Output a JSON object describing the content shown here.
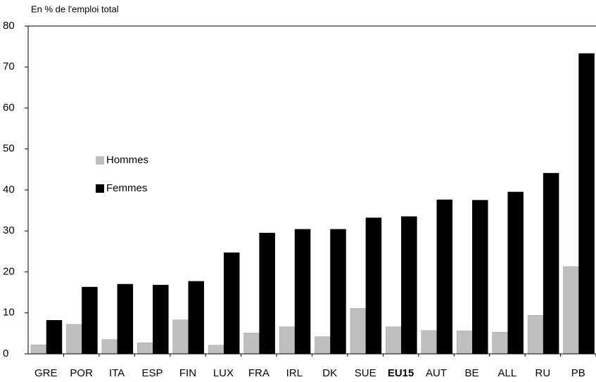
{
  "chart_data": {
    "type": "bar",
    "y_label": "En % de l'emploi total",
    "categories": [
      "GRE",
      "POR",
      "ITA",
      "ESP",
      "FIN",
      "LUX",
      "FRA",
      "IRL",
      "DK",
      "SUE",
      "EU15",
      "AUT",
      "BE",
      "ALL",
      "RU",
      "PB"
    ],
    "bold_category_index": 10,
    "series": [
      {
        "name": "Hommes",
        "color": "#bfbfbf",
        "values": [
          2.2,
          7.2,
          3.5,
          2.7,
          8.3,
          2.1,
          5.1,
          6.6,
          4.2,
          11.1,
          6.6,
          5.7,
          5.6,
          5.3,
          9.4,
          21.3
        ]
      },
      {
        "name": "Femmes",
        "color": "#000000",
        "values": [
          8.2,
          16.3,
          17.0,
          16.8,
          17.7,
          24.7,
          29.5,
          30.4,
          30.4,
          33.2,
          33.5,
          37.6,
          37.5,
          39.5,
          44.1,
          73.3
        ]
      }
    ],
    "ylim": [
      0,
      80
    ],
    "yticks": [
      0,
      10,
      20,
      30,
      40,
      50,
      60,
      70,
      80
    ],
    "grid": false
  }
}
